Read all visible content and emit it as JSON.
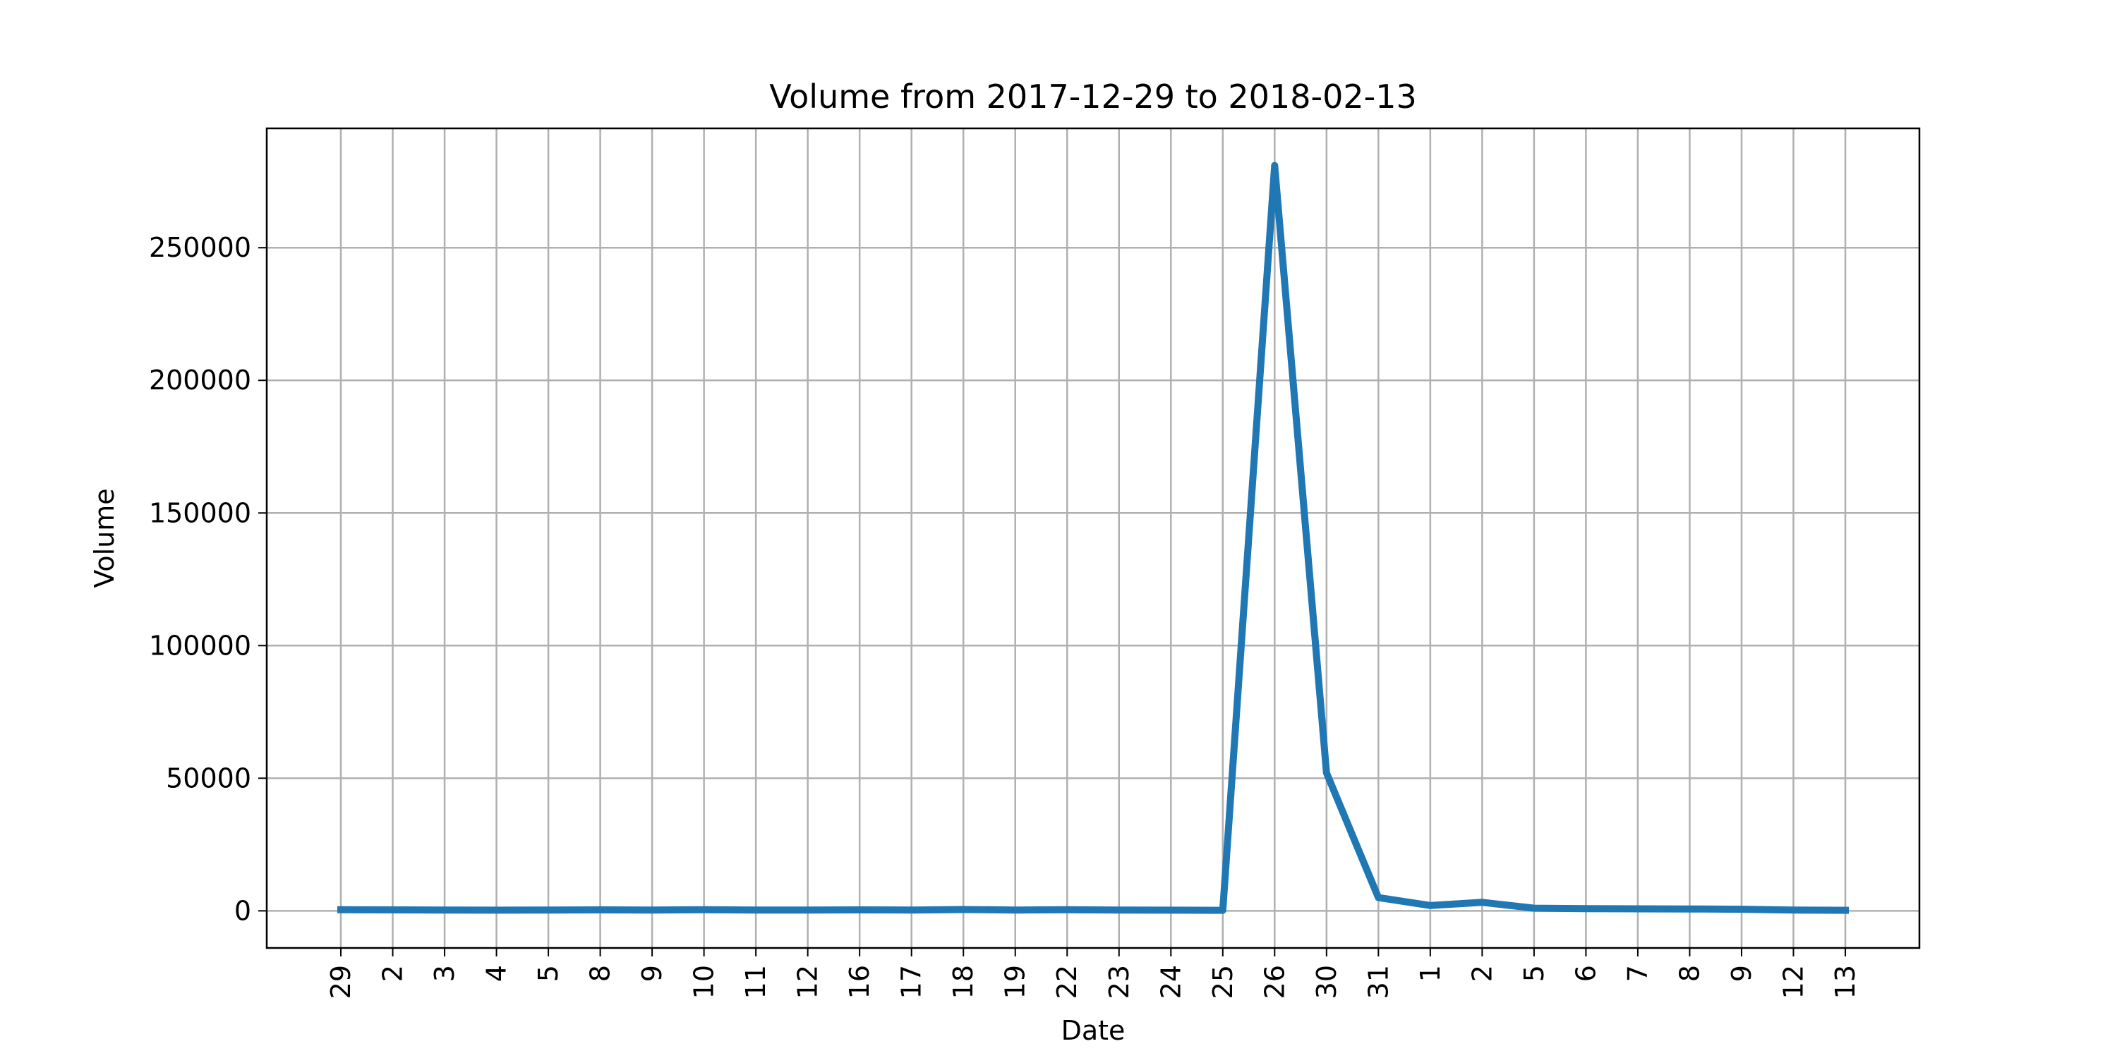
{
  "chart_data": {
    "type": "line",
    "title": "Volume from 2017-12-29 to 2018-02-13",
    "xlabel": "Date",
    "ylabel": "Volume",
    "x": [
      "2017-12-29",
      "2018-01-02",
      "2018-01-03",
      "2018-01-04",
      "2018-01-05",
      "2018-01-08",
      "2018-01-09",
      "2018-01-10",
      "2018-01-11",
      "2018-01-12",
      "2018-01-16",
      "2018-01-17",
      "2018-01-18",
      "2018-01-19",
      "2018-01-22",
      "2018-01-23",
      "2018-01-24",
      "2018-01-25",
      "2018-01-26",
      "2018-01-30",
      "2018-01-31",
      "2018-02-01",
      "2018-02-02",
      "2018-02-05",
      "2018-02-06",
      "2018-02-07",
      "2018-02-08",
      "2018-02-09",
      "2018-02-12",
      "2018-02-13"
    ],
    "x_tick_labels": [
      "29",
      "2",
      "3",
      "4",
      "5",
      "8",
      "9",
      "10",
      "11",
      "12",
      "16",
      "17",
      "18",
      "19",
      "22",
      "23",
      "24",
      "25",
      "26",
      "30",
      "31",
      "1",
      "2",
      "5",
      "6",
      "7",
      "8",
      "9",
      "12",
      "13"
    ],
    "series": [
      {
        "values": [
          400,
          350,
          300,
          250,
          300,
          350,
          300,
          400,
          300,
          300,
          350,
          300,
          500,
          300,
          400,
          300,
          250,
          200,
          281000,
          52000,
          5000,
          2000,
          3200,
          1000,
          800,
          750,
          700,
          600,
          300,
          200
        ],
        "color": "#1f77b4"
      }
    ],
    "y_ticks": [
      0,
      50000,
      100000,
      150000,
      200000,
      250000
    ],
    "ylim": [
      -14000,
      295000
    ],
    "grid": true,
    "legend": "none"
  }
}
